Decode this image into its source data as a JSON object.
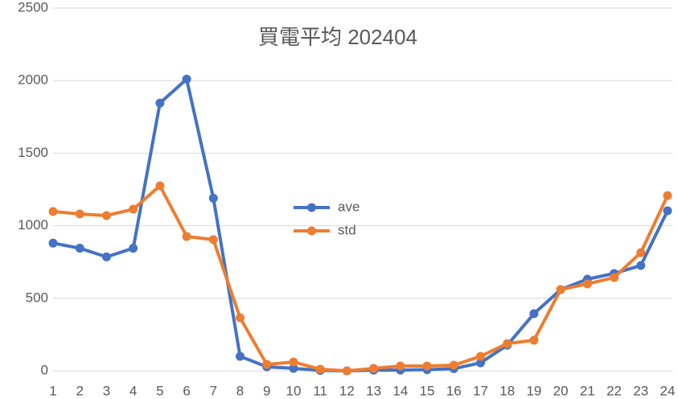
{
  "chart_data": {
    "type": "line",
    "title": "買電平均 202404",
    "categories": [
      "1",
      "2",
      "3",
      "4",
      "5",
      "6",
      "7",
      "8",
      "9",
      "10",
      "11",
      "12",
      "13",
      "14",
      "15",
      "16",
      "17",
      "18",
      "19",
      "20",
      "21",
      "22",
      "23",
      "24"
    ],
    "series": [
      {
        "name": "ave",
        "color": "#4472c4",
        "values": [
          880,
          845,
          785,
          845,
          1845,
          2010,
          1190,
          100,
          28,
          17,
          3,
          0,
          5,
          5,
          8,
          15,
          55,
          177,
          394,
          560,
          632,
          671,
          726,
          1103
        ]
      },
      {
        "name": "std",
        "color": "#ed7d31",
        "values": [
          1098,
          1081,
          1070,
          1114,
          1275,
          926,
          904,
          366,
          44,
          61,
          11,
          0,
          17,
          33,
          33,
          39,
          100,
          188,
          211,
          560,
          599,
          643,
          815,
          1208
        ]
      }
    ],
    "ylim": [
      0,
      2500
    ],
    "yticks": [
      0,
      500,
      1000,
      1500,
      2000,
      2500
    ],
    "grid": true
  }
}
